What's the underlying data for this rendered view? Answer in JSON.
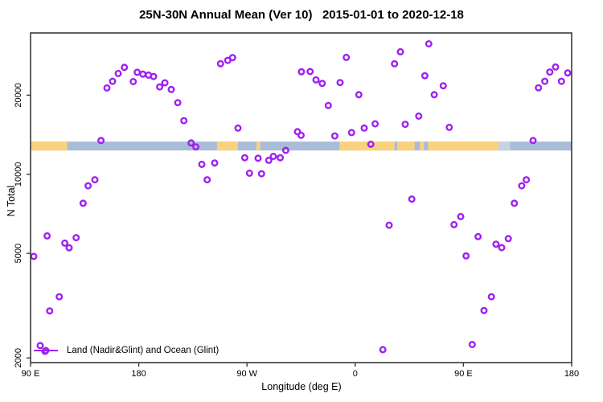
{
  "title": "25N-30N Annual Mean (Ver 10)   2015-01-01 to 2020-12-18",
  "colors": {
    "background": "#FFFFFF",
    "axis": "#3a3a3a",
    "text": "#000000",
    "accent_point": "#A020F0"
  },
  "chart_data": {
    "type": "scatter",
    "title": "25N-30N Annual Mean (Ver 10)   2015-01-01 to 2020-12-18",
    "xlabel": "Longitude (deg E)",
    "ylabel": "N Total",
    "x_scale": "linear",
    "y_scale": "log",
    "xlim": [
      90,
      540
    ],
    "ylim": [
      1920,
      34500
    ],
    "grid": false,
    "x_ticks": [
      {
        "v": 90,
        "label": "90 E"
      },
      {
        "v": 180,
        "label": "180"
      },
      {
        "v": 270,
        "label": "90 W"
      },
      {
        "v": 360,
        "label": "0"
      },
      {
        "v": 450,
        "label": "90 E"
      },
      {
        "v": 540,
        "label": "180"
      }
    ],
    "y_ticks": [
      {
        "v": 2000,
        "label": "2000"
      },
      {
        "v": 5000,
        "label": "5000"
      },
      {
        "v": 10000,
        "label": "10000"
      },
      {
        "v": 20000,
        "label": "20000"
      }
    ],
    "legend": {
      "label": "Land (Nadir&Glint) and Ocean (Glint)",
      "position": "bottom-left",
      "marker": "open-circle-on-line"
    },
    "point_style": {
      "shape": "open-circle",
      "color": "#A020F0",
      "radius_px": 3.3,
      "stroke_px": 2.4
    },
    "map_strip": {
      "description": "land(orange)/ocean(blue) strip of the 25N-30N latitude band",
      "n_range": [
        12320,
        13320
      ],
      "ocean_color": "#A9BDD8",
      "land_color": "#FAD27E",
      "light_ocean_color": "#C6D3E3",
      "land_segments_lon": [
        [
          90,
          120.5
        ],
        [
          245,
          262.5
        ],
        [
          277.9,
          280.9
        ],
        [
          347,
          392.7
        ],
        [
          394.9,
          409.4
        ],
        [
          413.8,
          417.2
        ],
        [
          420.6,
          479.2
        ]
      ],
      "light_ocean_segments_lon": [
        [
          479.2,
          489
        ]
      ]
    },
    "points": [
      [
        153.5,
        21310
      ],
      [
        158.2,
        22590
      ],
      [
        162.9,
        24180
      ],
      [
        168.0,
        25510
      ],
      [
        175.4,
        22530
      ],
      [
        178.7,
        24440
      ],
      [
        183.4,
        24050
      ],
      [
        188.1,
        23850
      ],
      [
        192.3,
        23560
      ],
      [
        197.4,
        21500
      ],
      [
        201.7,
        22290
      ],
      [
        207.0,
        21020
      ],
      [
        212.4,
        18730
      ],
      [
        217.5,
        15990
      ],
      [
        148.6,
        13440
      ],
      [
        143.5,
        9530
      ],
      [
        137.9,
        9040
      ],
      [
        133.7,
        7760
      ],
      [
        103.8,
        5830
      ],
      [
        127.9,
        5740
      ],
      [
        118.5,
        5470
      ],
      [
        122.1,
        5250
      ],
      [
        92.7,
        4870
      ],
      [
        113.9,
        3420
      ],
      [
        105.9,
        3020
      ],
      [
        98.0,
        2230
      ],
      [
        102.0,
        2120
      ],
      [
        248.0,
        26340
      ],
      [
        254.0,
        27130
      ],
      [
        258.0,
        27800
      ],
      [
        262.5,
        14990
      ],
      [
        223.5,
        13160
      ],
      [
        227.5,
        12710
      ],
      [
        232.4,
        10910
      ],
      [
        243.1,
        11040
      ],
      [
        236.9,
        9530
      ],
      [
        268.1,
        11560
      ],
      [
        279.2,
        11510
      ],
      [
        272.1,
        10100
      ],
      [
        282.1,
        10050
      ],
      [
        288.1,
        11300
      ],
      [
        291.9,
        11700
      ],
      [
        297.7,
        11560
      ],
      [
        302.2,
        12330
      ],
      [
        312.0,
        14520
      ],
      [
        315.0,
        14070
      ],
      [
        315.3,
        24550
      ],
      [
        322.5,
        24600
      ],
      [
        327.4,
        22870
      ],
      [
        332.5,
        22180
      ],
      [
        347.4,
        22330
      ],
      [
        352.6,
        27850
      ],
      [
        363.0,
        20080
      ],
      [
        337.6,
        18270
      ],
      [
        376.6,
        15560
      ],
      [
        367.5,
        14990
      ],
      [
        357.0,
        14410
      ],
      [
        343.0,
        13990
      ],
      [
        373.0,
        13010
      ],
      [
        392.7,
        26340
      ],
      [
        397.6,
        29250
      ],
      [
        421.2,
        31370
      ],
      [
        417.9,
        23710
      ],
      [
        412.8,
        16650
      ],
      [
        401.6,
        15500
      ],
      [
        425.7,
        20080
      ],
      [
        433.2,
        21720
      ],
      [
        438.2,
        15090
      ],
      [
        507.9,
        13440
      ],
      [
        512.4,
        21330
      ],
      [
        517.7,
        22590
      ],
      [
        521.8,
        24490
      ],
      [
        526.6,
        25600
      ],
      [
        531.5,
        22590
      ],
      [
        536.7,
        24300
      ],
      [
        498.5,
        9040
      ],
      [
        502.3,
        9530
      ],
      [
        407.1,
        8050
      ],
      [
        388.2,
        6400
      ],
      [
        383.0,
        2150
      ],
      [
        492.3,
        7760
      ],
      [
        447.7,
        6900
      ],
      [
        442.2,
        6430
      ],
      [
        462.2,
        5790
      ],
      [
        487.3,
        5690
      ],
      [
        477.1,
        5420
      ],
      [
        481.8,
        5260
      ],
      [
        452.2,
        4890
      ],
      [
        473.3,
        3420
      ],
      [
        467.1,
        3030
      ],
      [
        457.3,
        2250
      ]
    ]
  }
}
